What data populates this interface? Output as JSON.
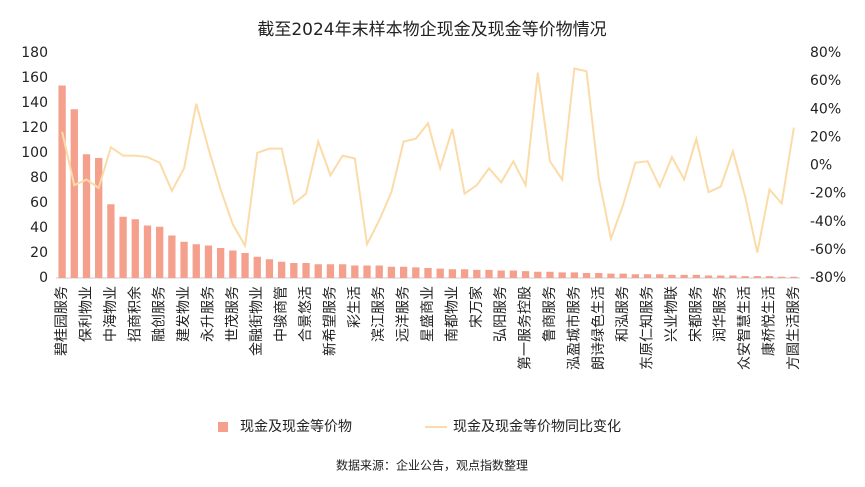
{
  "chart_data": {
    "type": "bar_line",
    "title": "截至2024年末样本物企现金及现金等价物情况",
    "source": "数据来源：企业公告，观点指数整理",
    "categories": [
      "碧桂园服务",
      null,
      "保利物业",
      null,
      "中海物业",
      null,
      "招商积余",
      null,
      "融创服务",
      null,
      "建发物业",
      null,
      "永升服务",
      null,
      "世茂服务",
      null,
      "金融街物业",
      null,
      "中骏商管",
      null,
      "合景悠活",
      null,
      "新希望服务",
      null,
      "彩生活",
      null,
      "滨江服务",
      null,
      "远洋服务",
      null,
      "星盛商业",
      null,
      "南都物业",
      null,
      "宋万家",
      null,
      "弘阳服务",
      null,
      "第一服务控股",
      null,
      "鲁商服务",
      null,
      "泓盈城市服务",
      null,
      "朗诗绿色生活",
      null,
      "和泓服务",
      null,
      "东原仁知服务",
      null,
      "兴业物联",
      null,
      "宋都服务",
      null,
      "润华服务",
      null,
      "众安智慧生活",
      null,
      "康桥悦生活",
      null,
      "方圆生活服务"
    ],
    "series": [
      {
        "name": "现金及现金等价物",
        "color": "#f4a08c",
        "values": [
          154,
          135,
          99,
          96,
          59,
          49,
          47,
          42,
          41,
          34,
          29,
          27,
          26,
          24,
          22,
          20,
          17,
          15,
          13,
          12,
          12,
          11,
          11,
          11,
          10,
          10,
          10,
          9,
          9,
          8.5,
          8,
          7.5,
          7,
          7,
          6.5,
          6.5,
          6,
          6,
          5.5,
          5,
          5,
          4.5,
          4.5,
          4,
          4,
          3.5,
          3.5,
          3,
          3,
          3,
          2.5,
          2.5,
          2.5,
          2,
          2,
          2,
          1.5,
          1.5,
          1.5,
          1,
          1
        ]
      },
      {
        "name": "现金及现金等价物同比变化",
        "color": "#fbdca8",
        "axis": "y2",
        "values": [
          24,
          -14,
          -10,
          -16,
          13,
          7,
          7,
          6,
          2,
          -18,
          -2,
          44,
          12,
          -17,
          -42,
          -57,
          9,
          12,
          12,
          -27,
          -20,
          17,
          -7,
          7,
          5,
          -56,
          -39,
          -19,
          17,
          19,
          30,
          -2,
          26,
          -20,
          -14,
          -2,
          -12,
          3,
          -14,
          66,
          3,
          -10,
          69,
          67,
          -9,
          -52,
          -28,
          2,
          3,
          -15,
          6,
          -10,
          19,
          -19,
          -15,
          10,
          -22,
          -62,
          -17,
          -27,
          27
        ]
      }
    ],
    "ylim": [
      0,
      180
    ],
    "yticks": [
      0,
      20,
      40,
      60,
      80,
      100,
      120,
      140,
      160,
      180
    ],
    "y2lim": [
      -80,
      80
    ],
    "y2ticks": [
      {
        "value": -80,
        "label": "-80%"
      },
      {
        "value": -60,
        "label": "-60%"
      },
      {
        "value": -40,
        "label": "-40%"
      },
      {
        "value": -20,
        "label": "-20%"
      },
      {
        "value": 0,
        "label": "0%"
      },
      {
        "value": 20,
        "label": "20%"
      },
      {
        "value": 40,
        "label": "40%"
      },
      {
        "value": 60,
        "label": "60%"
      },
      {
        "value": 80,
        "label": "80%"
      }
    ]
  }
}
